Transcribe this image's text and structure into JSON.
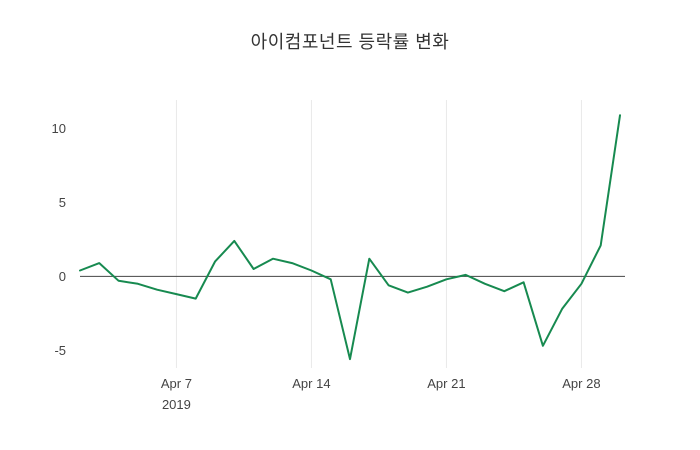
{
  "chart_data": {
    "type": "line",
    "title": "아이컴포넌트 등락률 변화",
    "xlabel": "",
    "ylabel": "",
    "ylim": [
      -6.2,
      11.6
    ],
    "grid": "vertical-weekly",
    "legend": "none",
    "zero_line": true,
    "colors": {
      "line": "#178a50",
      "grid": "#e8e8e8",
      "zero_line": "#444444",
      "tick_text": "#444444",
      "title_text": "#333333",
      "background": "#ffffff"
    },
    "x": [
      "2019-04-02",
      "2019-04-03",
      "2019-04-04",
      "2019-04-05",
      "2019-04-06",
      "2019-04-07",
      "2019-04-08",
      "2019-04-09",
      "2019-04-10",
      "2019-04-11",
      "2019-04-12",
      "2019-04-13",
      "2019-04-14",
      "2019-04-15",
      "2019-04-16",
      "2019-04-17",
      "2019-04-18",
      "2019-04-19",
      "2019-04-20",
      "2019-04-21",
      "2019-04-22",
      "2019-04-23",
      "2019-04-24",
      "2019-04-25",
      "2019-04-26",
      "2019-04-27",
      "2019-04-28",
      "2019-04-29",
      "2019-04-30"
    ],
    "series": [
      {
        "name": "등락률",
        "values": [
          0.4,
          0.9,
          -0.3,
          -0.5,
          -0.9,
          -1.2,
          -1.5,
          1.0,
          2.4,
          0.5,
          1.2,
          0.9,
          0.4,
          -0.2,
          -5.6,
          1.2,
          -0.6,
          -1.1,
          -0.7,
          -0.2,
          0.1,
          -0.5,
          -1.0,
          -0.4,
          -4.7,
          -2.2,
          -0.5,
          2.1,
          10.9
        ]
      }
    ],
    "xticks": [
      {
        "label": "Apr 7",
        "sublabel": "2019",
        "index": 5
      },
      {
        "label": "Apr 14",
        "sublabel": "",
        "index": 12
      },
      {
        "label": "Apr 21",
        "sublabel": "",
        "index": 19
      },
      {
        "label": "Apr 28",
        "sublabel": "",
        "index": 26
      }
    ],
    "yticks": [
      -5,
      0,
      5,
      10
    ]
  }
}
